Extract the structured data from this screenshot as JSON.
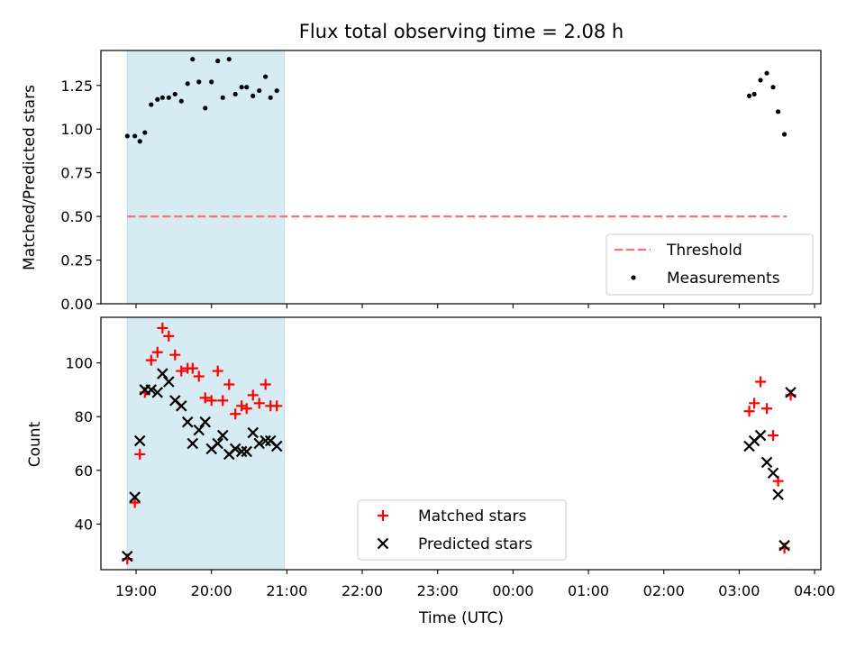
{
  "chart_data": {
    "title": "Flux total observing time = 2.08 h",
    "xlabel": "Time (UTC)",
    "x_ticks": [
      "19:00",
      "20:00",
      "21:00",
      "22:00",
      "23:00",
      "00:00",
      "01:00",
      "02:00",
      "03:00",
      "04:00"
    ],
    "shaded_span": {
      "start": "18:53",
      "end": "20:58",
      "color": "#add8e6"
    },
    "panels": [
      {
        "type": "scatter",
        "ylabel": "Matched/Predicted stars",
        "ylim": [
          0,
          1.45
        ],
        "y_ticks": [
          "0.00",
          "0.25",
          "0.50",
          "0.75",
          "1.00",
          "1.25"
        ],
        "legend": {
          "placement": "lower-right",
          "entries": [
            "Threshold",
            "Measurements"
          ]
        },
        "threshold": {
          "name": "Threshold",
          "value": 0.5,
          "x_start": "18:53",
          "x_end": "03:38",
          "color": "#ff7070"
        },
        "series": [
          {
            "name": "Measurements",
            "color": "#000000",
            "marker": "dot",
            "x": [
              "18:53",
              "18:59",
              "19:03",
              "19:07",
              "19:12",
              "19:17",
              "19:21",
              "19:26",
              "19:31",
              "19:36",
              "19:41",
              "19:45",
              "19:50",
              "19:55",
              "20:00",
              "20:05",
              "20:09",
              "20:14",
              "20:19",
              "20:24",
              "20:28",
              "20:33",
              "20:38",
              "20:43",
              "20:47",
              "20:52",
              "03:08",
              "03:12",
              "03:17",
              "03:22",
              "03:27",
              "03:31",
              "03:36"
            ],
            "y": [
              0.96,
              0.96,
              0.93,
              0.98,
              1.14,
              1.17,
              1.18,
              1.18,
              1.2,
              1.16,
              1.26,
              1.4,
              1.27,
              1.12,
              1.27,
              1.39,
              1.18,
              1.4,
              1.2,
              1.24,
              1.24,
              1.19,
              1.22,
              1.3,
              1.18,
              1.22,
              1.19,
              1.2,
              1.28,
              1.32,
              1.24,
              1.1,
              0.97
            ]
          }
        ]
      },
      {
        "type": "scatter",
        "ylabel": "Count",
        "ylim": [
          23,
          117
        ],
        "y_ticks": [
          "40",
          "60",
          "80",
          "100"
        ],
        "legend": {
          "placement": "lower-center",
          "entries": [
            "Matched stars",
            "Predicted stars"
          ]
        },
        "series": [
          {
            "name": "Matched stars",
            "color": "#ff0000",
            "marker": "plus",
            "x": [
              "18:53",
              "18:59",
              "19:03",
              "19:07",
              "19:12",
              "19:17",
              "19:21",
              "19:26",
              "19:31",
              "19:36",
              "19:41",
              "19:45",
              "19:50",
              "19:55",
              "20:00",
              "20:05",
              "20:09",
              "20:14",
              "20:19",
              "20:24",
              "20:28",
              "20:33",
              "20:38",
              "20:43",
              "20:47",
              "20:52",
              "03:08",
              "03:12",
              "03:17",
              "03:22",
              "03:27",
              "03:31",
              "03:36",
              "03:41"
            ],
            "y": [
              27,
              48,
              66,
              89,
              101,
              104,
              113,
              110,
              103,
              97,
              98,
              98,
              95,
              87,
              86,
              97,
              86,
              92,
              81,
              84,
              83,
              88,
              85,
              92,
              84,
              84,
              82,
              85,
              93,
              83,
              73,
              56,
              31,
              88
            ]
          },
          {
            "name": "Predicted stars",
            "color": "#000000",
            "marker": "x",
            "x": [
              "18:53",
              "18:59",
              "19:03",
              "19:07",
              "19:12",
              "19:17",
              "19:21",
              "19:26",
              "19:31",
              "19:36",
              "19:41",
              "19:45",
              "19:50",
              "19:55",
              "20:00",
              "20:05",
              "20:09",
              "20:14",
              "20:19",
              "20:24",
              "20:28",
              "20:33",
              "20:38",
              "20:43",
              "20:47",
              "20:52",
              "03:08",
              "03:12",
              "03:17",
              "03:22",
              "03:27",
              "03:31",
              "03:36",
              "03:41"
            ],
            "y": [
              28,
              50,
              71,
              90,
              90,
              89,
              96,
              93,
              86,
              84,
              78,
              70,
              75,
              78,
              68,
              70,
              73,
              66,
              68,
              67,
              67,
              74,
              70,
              71,
              71,
              69,
              69,
              71,
              73,
              63,
              59,
              51,
              32,
              89
            ]
          }
        ]
      }
    ]
  }
}
